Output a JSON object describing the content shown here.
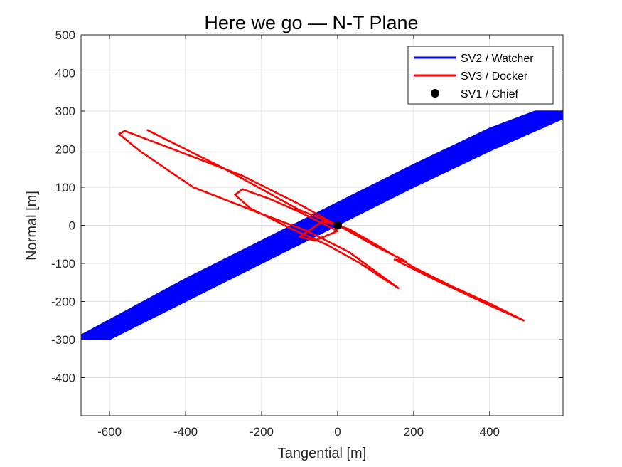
{
  "chart_data": {
    "type": "line",
    "title": "Here we go — N-T Plane",
    "xlabel": "Tangential [m]",
    "ylabel": "Normal [m]",
    "xlim": [
      -675,
      593
    ],
    "ylim": [
      -500,
      500
    ],
    "xticks": [
      -600,
      -400,
      -200,
      0,
      200,
      400
    ],
    "yticks": [
      -400,
      -300,
      -200,
      -100,
      0,
      100,
      200,
      300,
      400,
      500
    ],
    "grid": true,
    "legend_position": "top-right",
    "colors": {
      "watcher": "#0000ff",
      "docker": "#ff0000",
      "chief": "#000000"
    },
    "series": [
      {
        "name": "SV2 / Watcher",
        "kind": "band",
        "color": "#0000ff",
        "upper_edge": [
          [
            -675,
            -288
          ],
          [
            -530,
            -210
          ],
          [
            -400,
            -140
          ],
          [
            -200,
            -40
          ],
          [
            0,
            60
          ],
          [
            200,
            160
          ],
          [
            400,
            255
          ],
          [
            520,
            300
          ],
          [
            593,
            300
          ]
        ],
        "lower_edge": [
          [
            -675,
            -300
          ],
          [
            -600,
            -300
          ],
          [
            -400,
            -200
          ],
          [
            -200,
            -100
          ],
          [
            0,
            0
          ],
          [
            200,
            100
          ],
          [
            400,
            195
          ],
          [
            593,
            280
          ]
        ]
      },
      {
        "name": "SV3 / Docker",
        "kind": "line",
        "color": "#ff0000",
        "points": [
          [
            -500,
            250
          ],
          [
            -300,
            150
          ],
          [
            -100,
            40
          ],
          [
            0,
            0
          ],
          [
            30,
            -10
          ],
          [
            100,
            -50
          ],
          [
            200,
            -110
          ],
          [
            300,
            -160
          ],
          [
            400,
            -205
          ],
          [
            490,
            -250
          ],
          [
            400,
            -210
          ],
          [
            250,
            -140
          ],
          [
            150,
            -90
          ],
          [
            180,
            -95
          ],
          [
            100,
            -55
          ],
          [
            20,
            -10
          ],
          [
            -20,
            10
          ],
          [
            -100,
            55
          ],
          [
            -250,
            130
          ],
          [
            -420,
            195
          ],
          [
            -560,
            248
          ],
          [
            -575,
            240
          ],
          [
            -520,
            195
          ],
          [
            -380,
            100
          ],
          [
            -200,
            30
          ],
          [
            -80,
            -15
          ],
          [
            30,
            -70
          ],
          [
            160,
            -165
          ],
          [
            120,
            -140
          ],
          [
            60,
            -100
          ],
          [
            -30,
            -50
          ],
          [
            -130,
            -5
          ],
          [
            -230,
            45
          ],
          [
            -270,
            80
          ],
          [
            -250,
            95
          ],
          [
            -180,
            70
          ],
          [
            -100,
            35
          ],
          [
            -40,
            5
          ],
          [
            -10,
            -10
          ],
          [
            0,
            -15
          ],
          [
            -60,
            -40
          ],
          [
            -100,
            -30
          ],
          [
            -40,
            10
          ],
          [
            0,
            0
          ]
        ]
      },
      {
        "name": "SV1 / Chief",
        "kind": "point",
        "color": "#000000",
        "points": [
          [
            0,
            0
          ]
        ]
      }
    ]
  }
}
